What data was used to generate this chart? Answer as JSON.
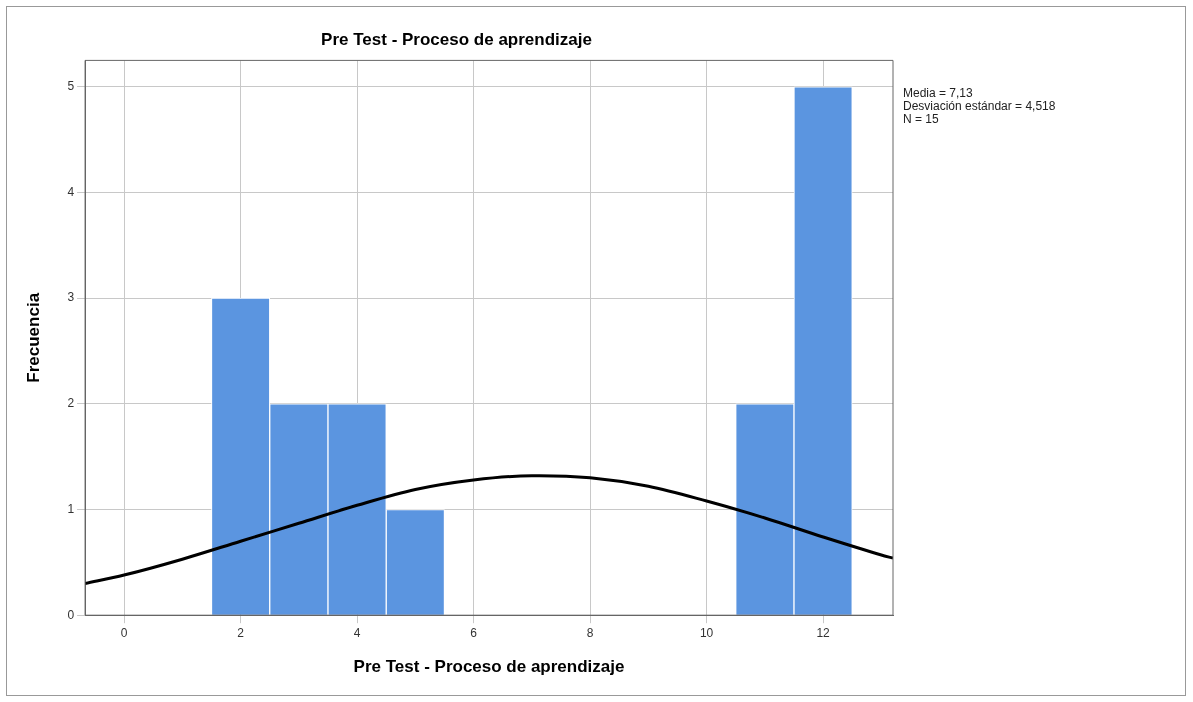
{
  "chart_data": {
    "type": "histogram",
    "title": "Pre Test - Proceso de aprendizaje",
    "xlabel": "Pre Test - Proceso de aprendizaje",
    "ylabel": "Frecuencia",
    "bins": [
      1.5,
      2.5,
      3.5,
      4.5,
      5.5,
      6.5,
      7.5,
      8.5,
      9.5,
      10.5,
      11.5,
      12.5
    ],
    "series": [
      {
        "color": "#5b95e0",
        "values": [
          3,
          2,
          2,
          1,
          0,
          0,
          0,
          0,
          0,
          2,
          5
        ]
      },
      {
        "type": "line",
        "color": "#000000",
        "x": [
          -0.67,
          0,
          1,
          2,
          3,
          4,
          5,
          6,
          7,
          7.13,
          8,
          9,
          10,
          11,
          12,
          13,
          13.2
        ],
        "values": [
          0.3,
          0.38,
          0.53,
          0.7,
          0.87,
          1.04,
          1.19,
          1.28,
          1.32,
          1.32,
          1.3,
          1.22,
          1.08,
          0.92,
          0.74,
          0.57,
          0.54
        ]
      }
    ],
    "xlim": [
      -0.67,
      13.2
    ],
    "xticks": [
      0,
      2,
      4,
      6,
      8,
      10,
      12
    ],
    "ylim": [
      0,
      5.25
    ],
    "yticks": [
      0,
      1,
      2,
      3,
      4,
      5
    ],
    "grid": true,
    "legend": false,
    "annotations": [
      "Media = 7,13",
      "Desviación estándar = 4,518",
      "N = 15"
    ]
  }
}
